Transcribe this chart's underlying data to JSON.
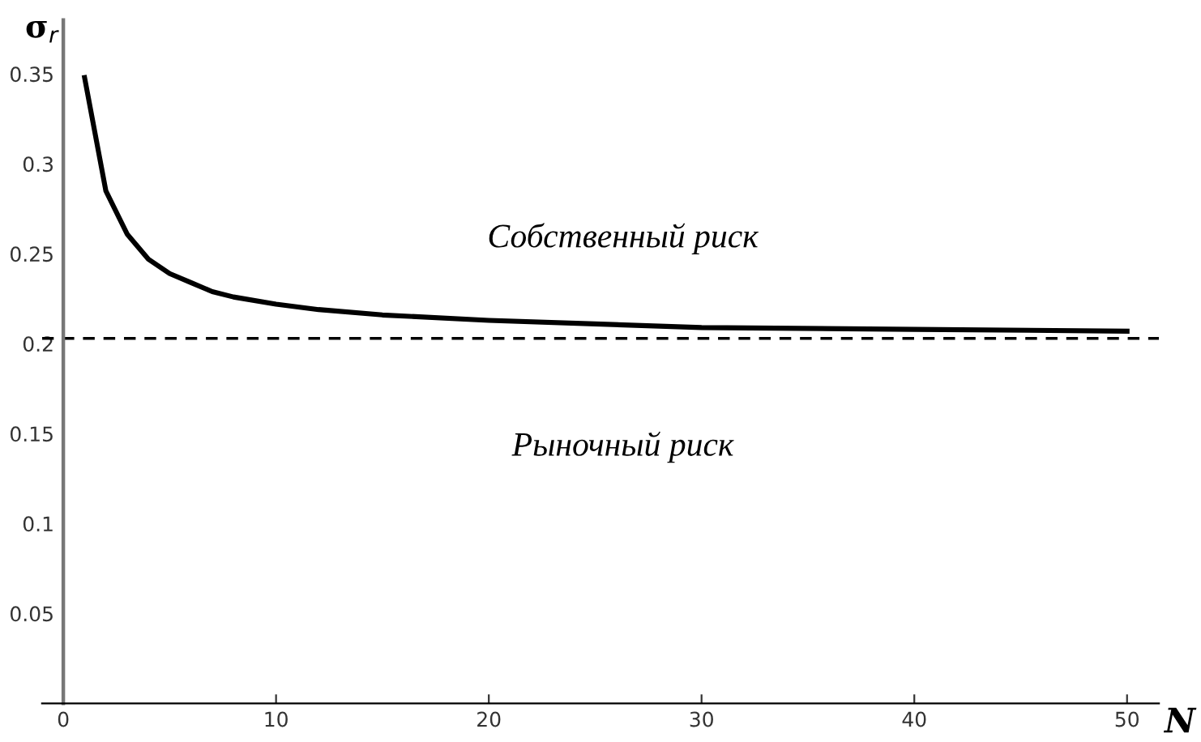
{
  "chart_data": {
    "type": "line",
    "xlabel": "N",
    "ylabel": "σ$_{r}$",
    "x": [
      1,
      2,
      3,
      4,
      5,
      6,
      7,
      8,
      10,
      12,
      15,
      20,
      25,
      30,
      40,
      50
    ],
    "series": [
      {
        "color": "#000000",
        "values": [
          0.348,
          0.285,
          0.261,
          0.247,
          0.239,
          0.234,
          0.229,
          0.226,
          0.222,
          0.219,
          0.216,
          0.213,
          0.211,
          0.209,
          0.208,
          0.207
        ]
      }
    ],
    "xlim": [
      -1,
      51.5
    ],
    "ylim": [
      0,
      0.38
    ],
    "xticks": [
      0,
      10,
      20,
      30,
      40,
      50
    ],
    "yticks": [
      0.05,
      0.1,
      0.15,
      0.2,
      0.25,
      0.3,
      0.35
    ],
    "ref_lines": [
      {
        "axis": "y",
        "value": 0.203,
        "color": "#000000",
        "line_style": "dashed"
      }
    ],
    "annotations": [
      "Собственный риск",
      "Рыночный риск"
    ],
    "grid": false,
    "legend": false,
    "marker": "none",
    "line_style": "solid"
  }
}
